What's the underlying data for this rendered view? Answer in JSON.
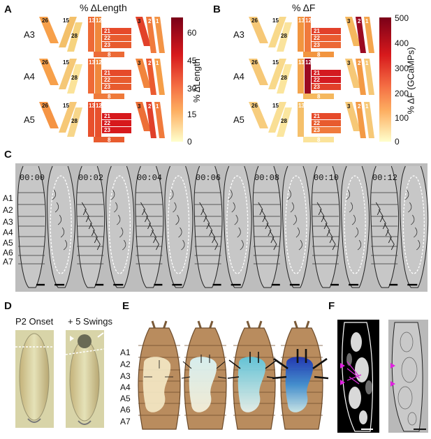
{
  "panels": {
    "A": {
      "letter": "A",
      "title": "% ΔLength",
      "cbar_label": "% ΔLength",
      "cbar_ticks": [
        "60",
        "45",
        "30",
        "15",
        "0"
      ]
    },
    "B": {
      "letter": "B",
      "title": "% ΔF",
      "cbar_label": "% ΔF (GCaMPs)",
      "cbar_ticks": [
        "500",
        "400",
        "300",
        "200",
        "100",
        "0"
      ]
    },
    "C": {
      "letter": "C",
      "timestamps": [
        "00:00",
        "00:02",
        "00:04",
        "00:06",
        "00:08",
        "00:10",
        "00:12"
      ],
      "segments": [
        "A1",
        "A2",
        "A3",
        "A4",
        "A5",
        "A6",
        "A7"
      ]
    },
    "D": {
      "letter": "D",
      "labels": [
        "P2 Onset",
        "+ 5 Swings"
      ]
    },
    "E": {
      "letter": "E",
      "segments": [
        "A1",
        "A2",
        "A3",
        "A4",
        "A5",
        "A6",
        "A7"
      ]
    },
    "F": {
      "letter": "F"
    }
  },
  "rows": [
    "A3",
    "A4",
    "A5"
  ],
  "muscle_labels": {
    "m26": "26",
    "m15": "15",
    "m28": "28",
    "m13": "13",
    "m12": "12",
    "m21": "21",
    "m22": "22",
    "m23": "23",
    "m8": "8",
    "m3": "3",
    "m2": "2",
    "m1": "1"
  },
  "colors": {
    "cbar_top": "#8b0018",
    "cbar_mid": "#ef3b2c",
    "cbar_low": "#fdae61",
    "cbar_bottom": "#ffffcc",
    "larva_brown": "#b98c5e",
    "cyan": "#a6e8f0",
    "blue": "#2340c8",
    "magenta": "#e020e0"
  }
}
